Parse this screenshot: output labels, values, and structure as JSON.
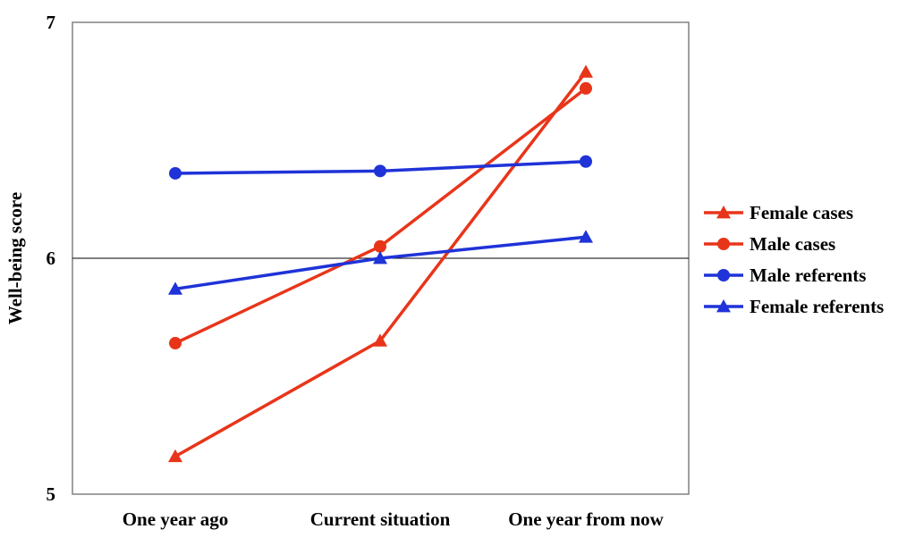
{
  "chart_data": {
    "type": "line",
    "title": "",
    "xlabel": "",
    "ylabel": "Well-being score",
    "ylim": [
      5,
      7
    ],
    "yticks": [
      5,
      6,
      7
    ],
    "categories": [
      "One year ago",
      "Current situation",
      "One year from now"
    ],
    "grid": "horizontal line at 6 only",
    "legend_position": "right",
    "series": [
      {
        "name": "Female cases",
        "marker": "triangle",
        "color": "#e8351a",
        "values": [
          5.16,
          5.65,
          6.79
        ]
      },
      {
        "name": "Male cases",
        "marker": "circle",
        "color": "#e8351a",
        "values": [
          5.64,
          6.05,
          6.72
        ]
      },
      {
        "name": "Male referents",
        "marker": "circle",
        "color": "#1f33d8",
        "values": [
          6.36,
          6.37,
          6.41
        ]
      },
      {
        "name": "Female referents",
        "marker": "triangle",
        "color": "#1f33d8",
        "values": [
          5.87,
          6.0,
          6.09
        ]
      }
    ]
  }
}
